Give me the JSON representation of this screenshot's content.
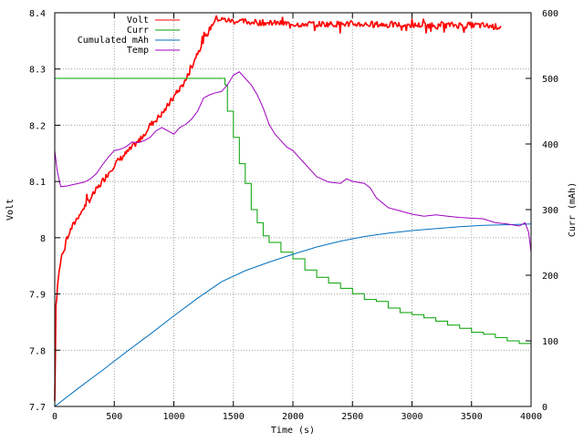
{
  "chart_data": {
    "type": "line",
    "xlabel": "Time (s)",
    "ylabel_left": "Volt",
    "ylabel_right": "Curr (mAh)",
    "x_range": [
      0,
      4000
    ],
    "y_left_range": [
      7.7,
      8.4
    ],
    "y_right_range": [
      0,
      600
    ],
    "grid": true,
    "legend_position": "top-left",
    "x_ticks": [
      {
        "value": 0,
        "label": "0"
      },
      {
        "value": 500,
        "label": "500"
      },
      {
        "value": 1000,
        "label": "1000"
      },
      {
        "value": 1500,
        "label": "1500"
      },
      {
        "value": 2000,
        "label": "2000"
      },
      {
        "value": 2500,
        "label": "2500"
      },
      {
        "value": 3000,
        "label": "3000"
      },
      {
        "value": 3500,
        "label": "3500"
      },
      {
        "value": 4000,
        "label": "4000"
      }
    ],
    "y_left_ticks": [
      {
        "value": 7.7,
        "label": "7.7"
      },
      {
        "value": 7.8,
        "label": "7.8"
      },
      {
        "value": 7.9,
        "label": "7.9"
      },
      {
        "value": 8.0,
        "label": "8"
      },
      {
        "value": 8.1,
        "label": "8.1"
      },
      {
        "value": 8.2,
        "label": "8.2"
      },
      {
        "value": 8.3,
        "label": "8.3"
      },
      {
        "value": 8.4,
        "label": "8.4"
      }
    ],
    "y_right_ticks": [
      {
        "value": 0,
        "label": "0"
      },
      {
        "value": 100,
        "label": "100"
      },
      {
        "value": 200,
        "label": "200"
      },
      {
        "value": 300,
        "label": "300"
      },
      {
        "value": 400,
        "label": "400"
      },
      {
        "value": 500,
        "label": "500"
      },
      {
        "value": 600,
        "label": "600"
      }
    ],
    "series": [
      {
        "name": "Volt",
        "axis": "left",
        "color": "#ff0000",
        "style": "noisy-thick",
        "points": [
          [
            0,
            7.71
          ],
          [
            10,
            7.88
          ],
          [
            30,
            7.93
          ],
          [
            60,
            7.97
          ],
          [
            100,
            8.0
          ],
          [
            150,
            8.02
          ],
          [
            200,
            8.04
          ],
          [
            300,
            8.07
          ],
          [
            400,
            8.1
          ],
          [
            500,
            8.13
          ],
          [
            600,
            8.15
          ],
          [
            700,
            8.17
          ],
          [
            800,
            8.2
          ],
          [
            900,
            8.22
          ],
          [
            1000,
            8.25
          ],
          [
            1100,
            8.28
          ],
          [
            1200,
            8.33
          ],
          [
            1300,
            8.37
          ],
          [
            1350,
            8.39
          ],
          [
            1500,
            8.385
          ],
          [
            2000,
            8.38
          ],
          [
            2500,
            8.38
          ],
          [
            3000,
            8.378
          ],
          [
            3500,
            8.378
          ],
          [
            3750,
            8.375
          ]
        ]
      },
      {
        "name": "Curr",
        "axis": "right",
        "color": "#00a000",
        "points": [
          [
            0,
            500
          ],
          [
            1400,
            500
          ],
          [
            1430,
            490
          ],
          [
            1450,
            450
          ],
          [
            1500,
            410
          ],
          [
            1550,
            370
          ],
          [
            1600,
            340
          ],
          [
            1650,
            300
          ],
          [
            1700,
            280
          ],
          [
            1750,
            260
          ],
          [
            1800,
            250
          ],
          [
            1900,
            235
          ],
          [
            2000,
            225
          ],
          [
            2100,
            208
          ],
          [
            2200,
            197
          ],
          [
            2300,
            188
          ],
          [
            2400,
            180
          ],
          [
            2500,
            172
          ],
          [
            2600,
            163
          ],
          [
            2700,
            160
          ],
          [
            2800,
            150
          ],
          [
            2900,
            143
          ],
          [
            3000,
            140
          ],
          [
            3100,
            135
          ],
          [
            3200,
            130
          ],
          [
            3300,
            124
          ],
          [
            3400,
            119
          ],
          [
            3500,
            113
          ],
          [
            3600,
            110
          ],
          [
            3700,
            105
          ],
          [
            3800,
            100
          ],
          [
            3900,
            96
          ],
          [
            4000,
            93
          ]
        ]
      },
      {
        "name": "Cumulated mAh",
        "axis": "right",
        "color": "#0070c0",
        "points": [
          [
            0,
            0
          ],
          [
            200,
            28
          ],
          [
            400,
            55
          ],
          [
            600,
            83
          ],
          [
            800,
            110
          ],
          [
            1000,
            138
          ],
          [
            1200,
            165
          ],
          [
            1400,
            190
          ],
          [
            1600,
            207
          ],
          [
            1800,
            220
          ],
          [
            2000,
            232
          ],
          [
            2200,
            243
          ],
          [
            2400,
            252
          ],
          [
            2600,
            259
          ],
          [
            2800,
            264
          ],
          [
            3000,
            268
          ],
          [
            3200,
            271
          ],
          [
            3400,
            274
          ],
          [
            3600,
            276
          ],
          [
            3800,
            277
          ],
          [
            4000,
            278
          ]
        ]
      },
      {
        "name": "Temp",
        "axis": "right",
        "color": "#a000c0",
        "points": [
          [
            0,
            390
          ],
          [
            20,
            360
          ],
          [
            50,
            335
          ],
          [
            100,
            336
          ],
          [
            150,
            338
          ],
          [
            200,
            340
          ],
          [
            250,
            342
          ],
          [
            300,
            347
          ],
          [
            350,
            355
          ],
          [
            400,
            368
          ],
          [
            450,
            380
          ],
          [
            500,
            390
          ],
          [
            550,
            392
          ],
          [
            600,
            396
          ],
          [
            650,
            403
          ],
          [
            700,
            402
          ],
          [
            750,
            405
          ],
          [
            800,
            410
          ],
          [
            850,
            420
          ],
          [
            900,
            425
          ],
          [
            950,
            420
          ],
          [
            1000,
            415
          ],
          [
            1050,
            425
          ],
          [
            1100,
            430
          ],
          [
            1150,
            438
          ],
          [
            1200,
            450
          ],
          [
            1250,
            470
          ],
          [
            1300,
            475
          ],
          [
            1350,
            478
          ],
          [
            1400,
            480
          ],
          [
            1450,
            490
          ],
          [
            1500,
            505
          ],
          [
            1550,
            510
          ],
          [
            1600,
            500
          ],
          [
            1650,
            490
          ],
          [
            1700,
            475
          ],
          [
            1750,
            455
          ],
          [
            1800,
            430
          ],
          [
            1850,
            415
          ],
          [
            1900,
            405
          ],
          [
            1950,
            395
          ],
          [
            2000,
            390
          ],
          [
            2050,
            380
          ],
          [
            2100,
            370
          ],
          [
            2150,
            360
          ],
          [
            2200,
            350
          ],
          [
            2300,
            342
          ],
          [
            2400,
            340
          ],
          [
            2450,
            347
          ],
          [
            2500,
            343
          ],
          [
            2600,
            340
          ],
          [
            2650,
            333
          ],
          [
            2700,
            318
          ],
          [
            2800,
            303
          ],
          [
            2900,
            298
          ],
          [
            3000,
            293
          ],
          [
            3100,
            290
          ],
          [
            3200,
            292
          ],
          [
            3300,
            290
          ],
          [
            3400,
            288
          ],
          [
            3500,
            287
          ],
          [
            3600,
            286
          ],
          [
            3700,
            280
          ],
          [
            3800,
            278
          ],
          [
            3900,
            275
          ],
          [
            3950,
            280
          ],
          [
            3980,
            265
          ],
          [
            4000,
            235
          ]
        ]
      }
    ]
  }
}
